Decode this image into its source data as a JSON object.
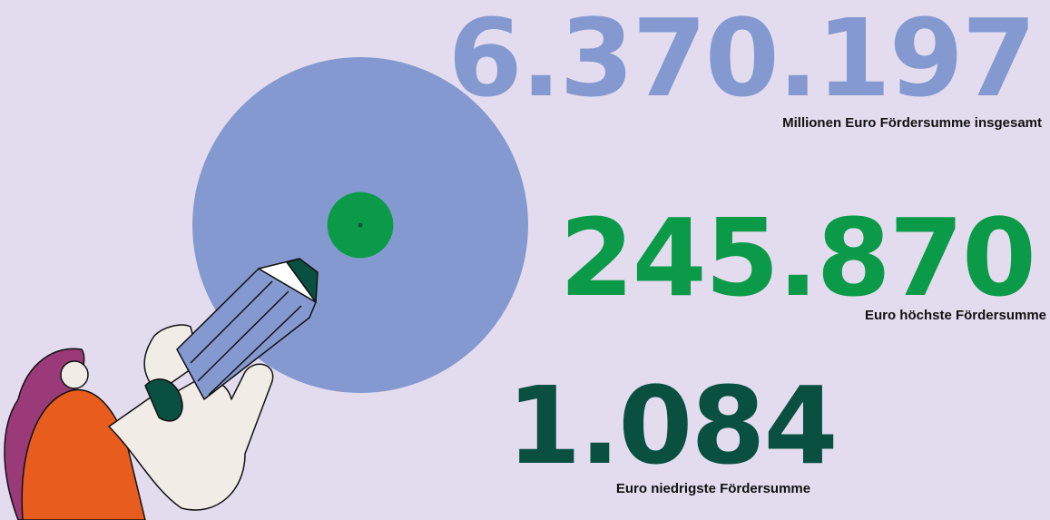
{
  "stats": [
    {
      "value": "6.370.197",
      "label": "Millionen Euro Fördersumme insgesamt",
      "color": "#8399d0"
    },
    {
      "value": "245.870",
      "label": "Euro höchste Fördersumme",
      "color": "#0a9a48"
    },
    {
      "value": "1.084",
      "label": "Euro niedrigste Fördersumme",
      "color": "#0a5040"
    }
  ]
}
